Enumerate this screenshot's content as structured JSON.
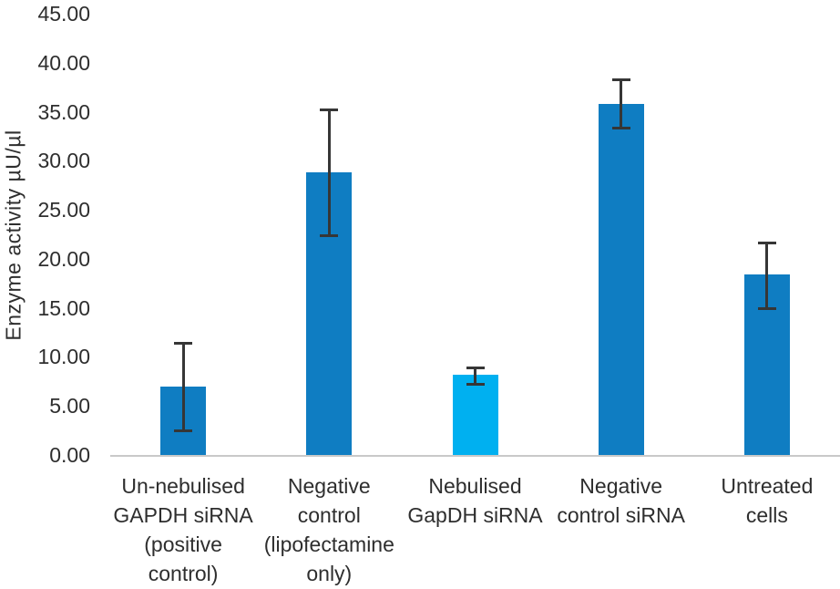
{
  "chart_data": {
    "type": "bar",
    "title": "",
    "xlabel": "",
    "ylabel": "Enzyme activity µU/µl",
    "ylim": [
      0,
      45
    ],
    "ytick_step": 5,
    "ytick_labels": [
      "45.00",
      "40.00",
      "35.00",
      "30.00",
      "25.00",
      "20.00",
      "15.00",
      "10.00",
      "5.00",
      "0.00"
    ],
    "categories": [
      "Un-nebulised GAPDH siRNA (positive control)",
      "Negative control (lipofectamine only)",
      "Nebulised GapDH siRNA",
      "Negative control siRNA",
      "Untreated cells"
    ],
    "category_label_lines": [
      [
        "Un-nebulised",
        "GAPDH siRNA",
        "(positive",
        "control)"
      ],
      [
        "Negative",
        "control",
        "(lipofectamine",
        "only)"
      ],
      [
        "Nebulised",
        "GapDH siRNA"
      ],
      [
        "Negative",
        "control siRNA"
      ],
      [
        "Untreated",
        "cells"
      ]
    ],
    "values": [
      7.0,
      28.8,
      8.2,
      35.8,
      18.4
    ],
    "error_low": [
      2.5,
      22.4,
      7.2,
      33.3,
      14.9
    ],
    "error_high": [
      11.4,
      35.2,
      8.9,
      38.3,
      21.6
    ],
    "bar_colors": [
      "#0f7dc2",
      "#0f7dc2",
      "#00b0f0",
      "#0f7dc2",
      "#0f7dc2"
    ],
    "grid": false,
    "legend": false,
    "colors": {
      "bar_default": "#0f7dc2",
      "bar_highlight": "#00b0f0",
      "error_bar": "#363636",
      "axis_line": "#c9c9c9",
      "text": "#2e2e2e",
      "background": "#ffffff"
    }
  }
}
